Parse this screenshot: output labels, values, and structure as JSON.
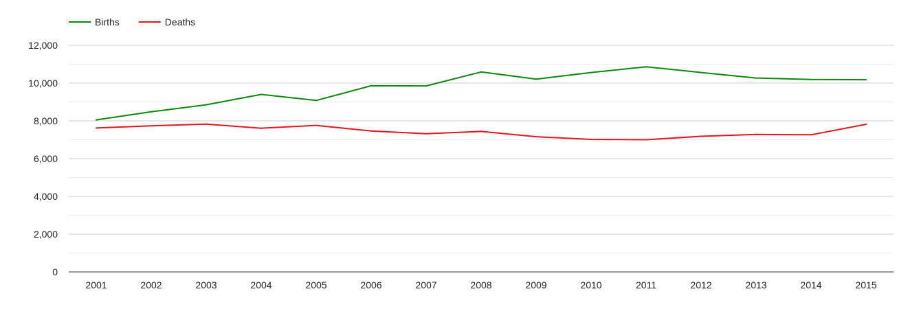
{
  "chart_data": {
    "type": "line",
    "title": "",
    "xlabel": "",
    "ylabel": "",
    "categories": [
      "2001",
      "2002",
      "2003",
      "2004",
      "2005",
      "2006",
      "2007",
      "2008",
      "2009",
      "2010",
      "2011",
      "2012",
      "2013",
      "2014",
      "2015"
    ],
    "series": [
      {
        "name": "Births",
        "color": "#0a8a0a",
        "values": [
          8050,
          8480,
          8850,
          9400,
          9080,
          9860,
          9850,
          10590,
          10210,
          10560,
          10860,
          10560,
          10270,
          10190,
          10180
        ]
      },
      {
        "name": "Deaths",
        "color": "#e8141c",
        "values": [
          7620,
          7740,
          7830,
          7610,
          7760,
          7460,
          7320,
          7440,
          7160,
          7020,
          7000,
          7180,
          7280,
          7260,
          7820
        ]
      }
    ],
    "ylim": [
      0,
      12000
    ],
    "yticks": [
      0,
      2000,
      4000,
      6000,
      8000,
      10000,
      12000
    ],
    "ytick_labels": [
      "0",
      "2,000",
      "4,000",
      "6,000",
      "8,000",
      "10,000",
      "12,000"
    ],
    "grid": true,
    "legend_position": "top-left"
  },
  "colors": {
    "gridline": "#cccccc",
    "minor_gridline": "#ebebeb",
    "baseline": "#333333",
    "text": "#222222"
  }
}
